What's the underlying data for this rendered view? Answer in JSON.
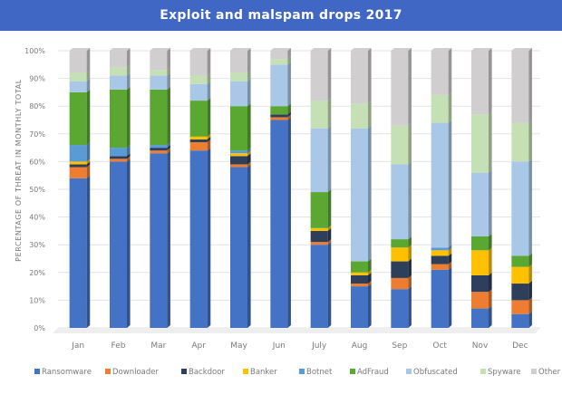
{
  "chart_data": {
    "type": "bar",
    "stacked": true,
    "title": "Exploit and malspam drops 2017",
    "ylabel": "PERCENTAGE OF THREAT IN MONTHLY TOTAL",
    "xlabel": "",
    "ylim": [
      0,
      100
    ],
    "yticks": [
      "0%",
      "10%",
      "20%",
      "30%",
      "40%",
      "50%",
      "60%",
      "70%",
      "80%",
      "90%",
      "100%"
    ],
    "legend_position": "bottom",
    "grid": true,
    "categories": [
      "Jan",
      "Feb",
      "Mar",
      "Apr",
      "May",
      "Jun",
      "July",
      "Aug",
      "Sep",
      "Oct",
      "Nov",
      "Dec"
    ],
    "series": [
      {
        "name": "Ransomware",
        "color": "#4472c4",
        "values": [
          54,
          60,
          63,
          64,
          58,
          75,
          30,
          15,
          14,
          21,
          7,
          5
        ]
      },
      {
        "name": "Downloader",
        "color": "#ed7d31",
        "values": [
          4,
          1,
          1,
          3,
          1,
          1,
          1,
          1,
          4,
          2,
          6,
          5
        ]
      },
      {
        "name": "Backdoor",
        "color": "#2e3f5c",
        "values": [
          1,
          1,
          1,
          1,
          3,
          1,
          4,
          3,
          6,
          3,
          6,
          6
        ]
      },
      {
        "name": "Banker",
        "color": "#ffc000",
        "values": [
          1,
          0,
          0,
          1,
          1,
          0,
          1,
          1,
          5,
          2,
          9,
          6
        ]
      },
      {
        "name": "Botnet",
        "color": "#5b9bd5",
        "values": [
          6,
          3,
          1,
          0,
          1,
          0,
          0,
          0,
          0,
          1,
          0,
          0
        ]
      },
      {
        "name": "AdFraud",
        "color": "#5aa832",
        "values": [
          19,
          21,
          20,
          13,
          16,
          3,
          13,
          4,
          3,
          0,
          5,
          4
        ]
      },
      {
        "name": "Obfuscated",
        "color": "#a9c8e8",
        "values": [
          4,
          5,
          5,
          6,
          9,
          15,
          23,
          48,
          27,
          45,
          23,
          34
        ]
      },
      {
        "name": "Spyware",
        "color": "#c5e0b4",
        "values": [
          3,
          3,
          2,
          3,
          3,
          2,
          10,
          9,
          14,
          10,
          21,
          14
        ]
      },
      {
        "name": "Other",
        "color": "#d0cece",
        "values": [
          8,
          6,
          7,
          9,
          8,
          3,
          18,
          19,
          27,
          16,
          23,
          26
        ]
      }
    ]
  }
}
